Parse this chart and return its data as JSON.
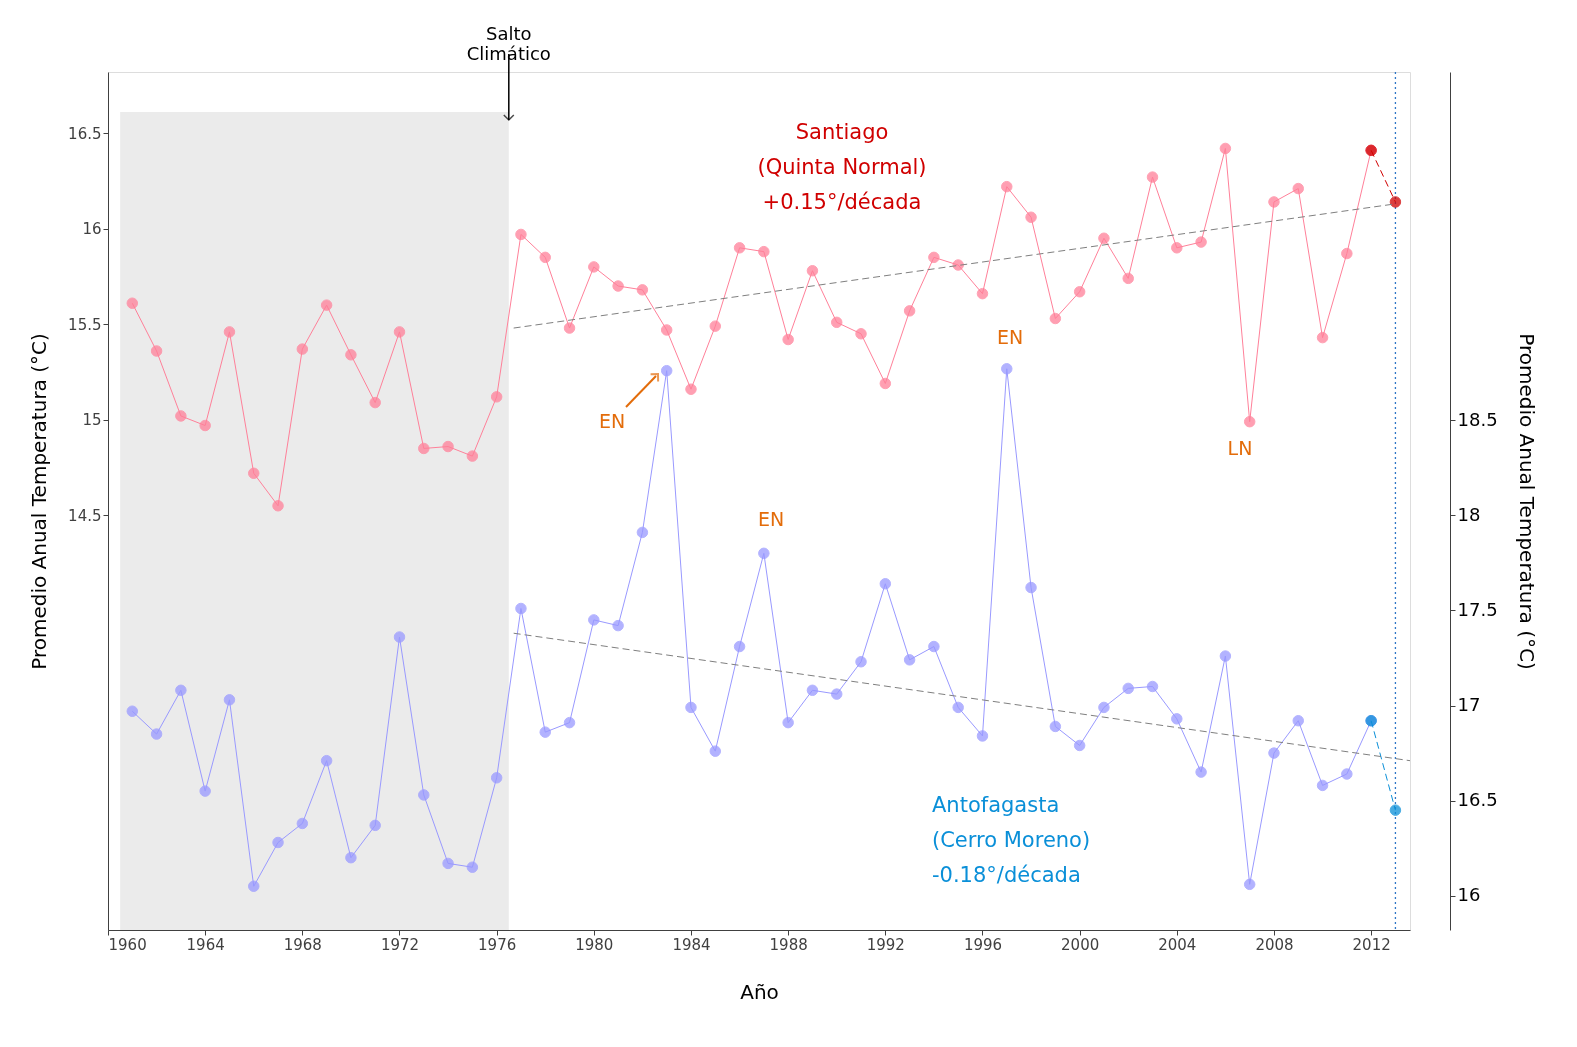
{
  "chart_data": {
    "type": "line",
    "xlabel": "Año",
    "ylabel": "Promedio Anual Temperatura (°C)",
    "y2label": "Promedio Anual Temperatura (°C)",
    "xlim": [
      1960,
      2013.6
    ],
    "xticks": [
      1960,
      1964,
      1968,
      1972,
      1976,
      1980,
      1984,
      1988,
      1992,
      1996,
      2000,
      2004,
      2008,
      2012
    ],
    "ylim": [
      12.33,
      16.82
    ],
    "yticks": [
      14.5,
      15,
      15.5,
      16,
      16.5
    ],
    "y2lim": [
      15.82,
      20.33
    ],
    "y2ticks": [
      16,
      16.5,
      17,
      17.5,
      18,
      18.5
    ],
    "grid": false,
    "series": [
      {
        "color": "#ff8099",
        "marker": "circle",
        "line_style": "solid",
        "x": [
          1961,
          1962,
          1963,
          1964,
          1965,
          1966,
          1967,
          1968,
          1969,
          1970,
          1971,
          1972,
          1973,
          1974,
          1975,
          1976,
          1977,
          1978,
          1979,
          1980,
          1981,
          1982,
          1983,
          1984,
          1985,
          1986,
          1987,
          1988,
          1989,
          1990,
          1991,
          1992,
          1993,
          1994,
          1995,
          1996,
          1997,
          1998,
          1999,
          2000,
          2001,
          2002,
          2003,
          2004,
          2005,
          2006,
          2007,
          2008,
          2009,
          2010,
          2011,
          2012
        ],
        "values": [
          15.61,
          15.36,
          15.02,
          14.97,
          15.46,
          14.72,
          14.55,
          15.37,
          15.6,
          15.34,
          15.09,
          15.46,
          14.85,
          14.86,
          14.81,
          15.12,
          15.97,
          15.85,
          15.48,
          15.8,
          15.7,
          15.68,
          15.47,
          15.16,
          15.49,
          15.9,
          15.88,
          15.42,
          15.78,
          15.51,
          15.45,
          15.19,
          15.57,
          15.85,
          15.81,
          15.66,
          16.22,
          16.06,
          15.53,
          15.67,
          15.95,
          15.74,
          16.27,
          15.9,
          15.93,
          16.42,
          14.99,
          16.14,
          16.21,
          15.43,
          15.87,
          16.41
        ]
      },
      {
        "name": "Santiago\n(Quinta Normal)\n+0.15°/década",
        "color": "#d00000",
        "marker": "circle",
        "line_style": "dashed",
        "x": [
          2012,
          2013
        ],
        "values": [
          16.41,
          16.14
        ]
      },
      {
        "axis": "y2",
        "color": "#9999ff",
        "marker": "circle",
        "line_style": "solid",
        "x": [
          1961,
          1962,
          1963,
          1964,
          1965,
          1966,
          1967,
          1968,
          1969,
          1970,
          1971,
          1972,
          1973,
          1974,
          1975,
          1976,
          1977,
          1978,
          1979,
          1980,
          1981,
          1982,
          1983,
          1984,
          1985,
          1986,
          1987,
          1988,
          1989,
          1990,
          1991,
          1992,
          1993,
          1994,
          1995,
          1996,
          1997,
          1998,
          1999,
          2000,
          2001,
          2002,
          2003,
          2004,
          2005,
          2006,
          2007,
          2008,
          2009,
          2010,
          2011,
          2012
        ],
        "values": [
          16.97,
          16.85,
          17.08,
          16.55,
          17.03,
          16.05,
          16.28,
          16.38,
          16.71,
          16.2,
          16.37,
          17.36,
          16.53,
          16.17,
          16.15,
          16.62,
          17.51,
          16.86,
          16.91,
          17.45,
          17.42,
          17.91,
          18.76,
          16.99,
          16.76,
          17.31,
          17.8,
          16.91,
          17.08,
          17.06,
          17.23,
          17.64,
          17.24,
          17.31,
          16.99,
          16.84,
          18.77,
          17.62,
          16.89,
          16.79,
          16.99,
          17.09,
          17.1,
          16.93,
          16.65,
          17.26,
          16.06,
          16.75,
          16.92,
          16.58,
          16.64,
          16.92
        ]
      },
      {
        "axis": "y2",
        "name": "Antofagasta\n(Cerro Moreno)\n-0.18°/década",
        "color": "#0a8fd8",
        "marker": "circle",
        "line_style": "dashed",
        "x": [
          2012,
          2013
        ],
        "values": [
          16.92,
          16.45
        ]
      },
      {
        "color": "#7f7f7f",
        "marker": "none",
        "line_style": "dashed",
        "x": [
          1976.7,
          2013
        ],
        "values": [
          15.48,
          16.13
        ]
      },
      {
        "axis": "y2",
        "color": "#7f7f7f",
        "marker": "none",
        "line_style": "dashed",
        "x": [
          1976.7,
          2013.6
        ],
        "values": [
          17.38,
          16.71
        ]
      }
    ],
    "bands": [
      {
        "axis": "x",
        "from": 1960.5,
        "to": 1976.5,
        "label": "Salto Climático",
        "color": "#ebebeb"
      }
    ],
    "ref_lines": [
      {
        "axis": "x",
        "value": 2013,
        "color": "#2e75c6",
        "line_style": "dotted"
      }
    ],
    "annotations": [
      "EN",
      "EN",
      "EN",
      "LN"
    ]
  }
}
